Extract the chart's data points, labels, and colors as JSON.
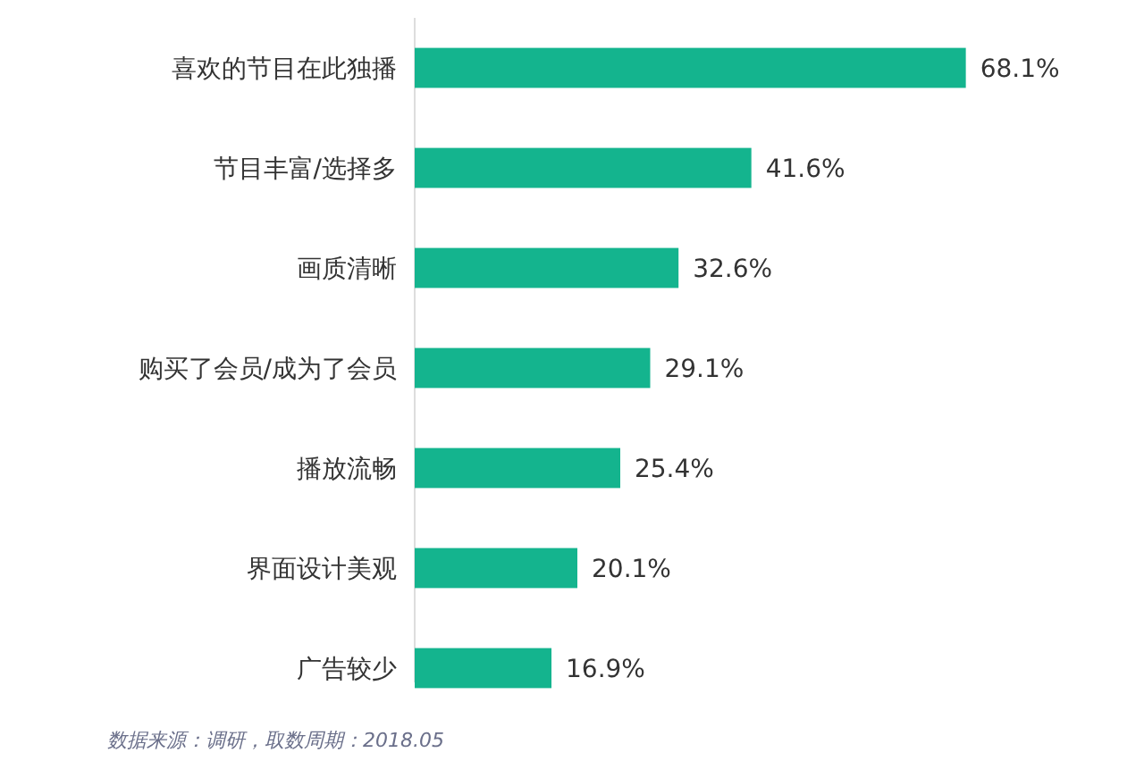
{
  "chart_data": {
    "type": "bar",
    "orientation": "horizontal",
    "categories": [
      "喜欢的节目在此独播",
      "节目丰富/选择多",
      "画质清晰",
      "购买了会员/成为了会员",
      "播放流畅",
      "界面设计美观",
      "广告较少"
    ],
    "values": [
      68.1,
      41.6,
      32.6,
      29.1,
      25.4,
      20.1,
      16.9
    ],
    "value_labels": [
      "68.1%",
      "41.6%",
      "32.6%",
      "29.1%",
      "25.4%",
      "20.1%",
      "16.9%"
    ],
    "color": "#14b48e",
    "annotations": [
      "数据来源：调研，取数周期：2018.05"
    ]
  }
}
